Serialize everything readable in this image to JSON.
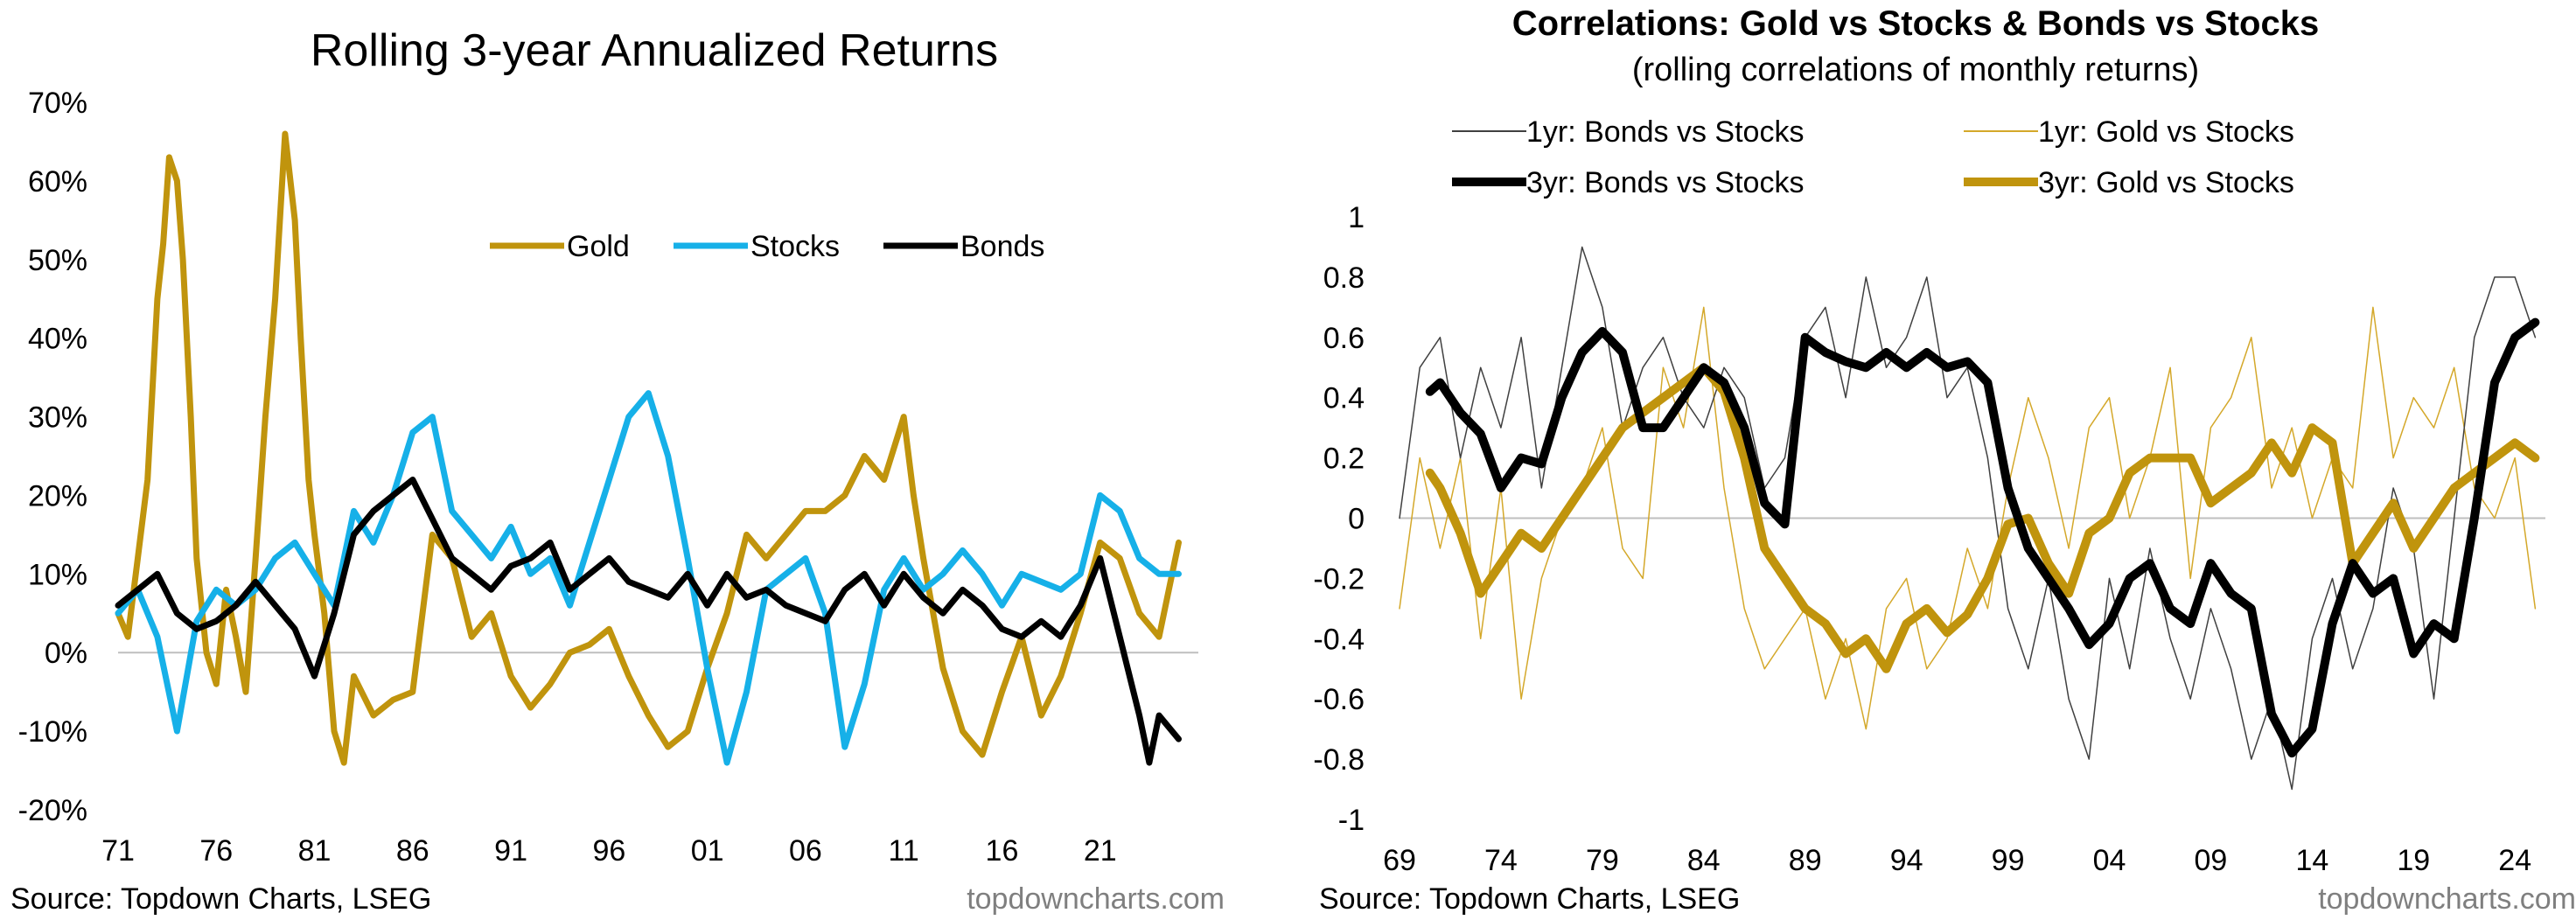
{
  "left_chart": {
    "source": "Source: Topdown Charts, LSEG",
    "brand": "topdowncharts.com"
  },
  "right_chart": {
    "source": "Source: Topdown Charts, LSEG",
    "brand": "topdowncharts.com"
  },
  "colors": {
    "gold": "#C0940D",
    "stocks": "#16B0E8",
    "bonds": "#000000",
    "zero_line": "#BFBFBF"
  },
  "chart_data": [
    {
      "id": "left",
      "type": "line",
      "title": "Rolling 3-year Annualized Returns",
      "xlabel": "",
      "ylabel": "",
      "x_ticks": [
        "71",
        "76",
        "81",
        "86",
        "91",
        "96",
        "01",
        "06",
        "11",
        "16",
        "21"
      ],
      "x_tick_values": [
        1971,
        1976,
        1981,
        1986,
        1991,
        1996,
        2001,
        2006,
        2011,
        2016,
        2021
      ],
      "xlim": [
        1971,
        2026
      ],
      "y_ticks": [
        "70%",
        "60%",
        "50%",
        "40%",
        "30%",
        "20%",
        "10%",
        "0%",
        "-10%",
        "-20%"
      ],
      "y_tick_values": [
        70,
        60,
        50,
        40,
        30,
        20,
        10,
        0,
        -10,
        -20
      ],
      "ylim": [
        -20,
        70
      ],
      "legend": [
        "Gold",
        "Stocks",
        "Bonds"
      ],
      "legend_position": "top-center",
      "series": [
        {
          "name": "Gold",
          "color": "#C0940D",
          "width": 7,
          "x": [
            1971,
            1971.5,
            1972,
            1972.5,
            1973,
            1973.3,
            1973.6,
            1974,
            1974.3,
            1974.7,
            1975,
            1975.5,
            1976,
            1976.5,
            1977,
            1977.5,
            1978,
            1978.5,
            1979,
            1979.5,
            1980,
            1980.3,
            1980.7,
            1981,
            1981.5,
            1982,
            1982.5,
            1983,
            1984,
            1985,
            1986,
            1987,
            1988,
            1989,
            1990,
            1991,
            1992,
            1993,
            1994,
            1995,
            1996,
            1997,
            1998,
            1999,
            2000,
            2001,
            2002,
            2003,
            2004,
            2005,
            2006,
            2007,
            2008,
            2009,
            2010,
            2011,
            2011.5,
            2012,
            2013,
            2014,
            2015,
            2016,
            2017,
            2018,
            2019,
            2020,
            2021,
            2022,
            2023,
            2024,
            2025
          ],
          "values": [
            5,
            2,
            12,
            22,
            45,
            52,
            63,
            60,
            50,
            30,
            12,
            0,
            -4,
            8,
            2,
            -5,
            12,
            30,
            45,
            66,
            55,
            40,
            22,
            15,
            5,
            -10,
            -14,
            -3,
            -8,
            -6,
            -5,
            15,
            12,
            2,
            5,
            -3,
            -7,
            -4,
            0,
            1,
            3,
            -3,
            -8,
            -12,
            -10,
            -2,
            5,
            15,
            12,
            15,
            18,
            18,
            20,
            25,
            22,
            30,
            20,
            12,
            -2,
            -10,
            -13,
            -5,
            2,
            -8,
            -3,
            5,
            14,
            12,
            5,
            2,
            14
          ]
        },
        {
          "name": "Stocks",
          "color": "#16B0E8",
          "width": 7,
          "x": [
            1971,
            1972,
            1973,
            1974,
            1975,
            1976,
            1977,
            1978,
            1979,
            1980,
            1981,
            1982,
            1983,
            1984,
            1985,
            1986,
            1987,
            1988,
            1989,
            1990,
            1991,
            1992,
            1993,
            1994,
            1995,
            1996,
            1997,
            1998,
            1999,
            2000,
            2001,
            2002,
            2003,
            2004,
            2005,
            2006,
            2007,
            2008,
            2009,
            2010,
            2011,
            2012,
            2013,
            2014,
            2015,
            2016,
            2017,
            2018,
            2019,
            2020,
            2021,
            2022,
            2023,
            2024,
            2025
          ],
          "values": [
            5,
            8,
            2,
            -10,
            4,
            8,
            6,
            8,
            12,
            14,
            10,
            6,
            18,
            14,
            20,
            28,
            30,
            18,
            15,
            12,
            16,
            10,
            12,
            6,
            14,
            22,
            30,
            33,
            25,
            12,
            -2,
            -14,
            -5,
            8,
            10,
            12,
            5,
            -12,
            -4,
            8,
            12,
            8,
            10,
            13,
            10,
            6,
            10,
            9,
            8,
            10,
            20,
            18,
            12,
            10,
            10
          ]
        },
        {
          "name": "Bonds",
          "color": "#000000",
          "width": 7,
          "x": [
            1971,
            1972,
            1973,
            1974,
            1975,
            1976,
            1977,
            1978,
            1979,
            1980,
            1981,
            1982,
            1983,
            1984,
            1985,
            1986,
            1987,
            1988,
            1989,
            1990,
            1991,
            1992,
            1993,
            1994,
            1995,
            1996,
            1997,
            1998,
            1999,
            2000,
            2001,
            2002,
            2003,
            2004,
            2005,
            2006,
            2007,
            2008,
            2009,
            2010,
            2011,
            2012,
            2013,
            2014,
            2015,
            2016,
            2017,
            2018,
            2019,
            2020,
            2021,
            2022,
            2023,
            2023.5,
            2024,
            2025
          ],
          "values": [
            6,
            8,
            10,
            5,
            3,
            4,
            6,
            9,
            6,
            3,
            -3,
            5,
            15,
            18,
            20,
            22,
            17,
            12,
            10,
            8,
            11,
            12,
            14,
            8,
            10,
            12,
            9,
            8,
            7,
            10,
            6,
            10,
            7,
            8,
            6,
            5,
            4,
            8,
            10,
            6,
            10,
            7,
            5,
            8,
            6,
            3,
            2,
            4,
            2,
            6,
            12,
            2,
            -8,
            -14,
            -8,
            -11
          ]
        }
      ]
    },
    {
      "id": "right",
      "type": "line",
      "title": "Correlations: Gold vs Stocks & Bonds vs Stocks",
      "subtitle": "(rolling correlations of monthly returns)",
      "xlabel": "",
      "ylabel": "",
      "x_ticks": [
        "69",
        "74",
        "79",
        "84",
        "89",
        "94",
        "99",
        "04",
        "09",
        "14",
        "19",
        "24"
      ],
      "x_tick_values": [
        1969,
        1974,
        1979,
        1984,
        1989,
        1994,
        1999,
        2004,
        2009,
        2014,
        2019,
        2024
      ],
      "xlim": [
        1969,
        2025.5
      ],
      "y_ticks": [
        "1",
        "0.8",
        "0.6",
        "0.4",
        "0.2",
        "0",
        "-0.2",
        "-0.4",
        "-0.6",
        "-0.8",
        "-1"
      ],
      "y_tick_values": [
        1,
        0.8,
        0.6,
        0.4,
        0.2,
        0,
        -0.2,
        -0.4,
        -0.6,
        -0.8,
        -1
      ],
      "ylim": [
        -1,
        1
      ],
      "legend": [
        "1yr: Bonds vs Stocks",
        "1yr: Gold vs Stocks",
        "3yr: Bonds vs Stocks",
        "3yr: Gold vs Stocks"
      ],
      "legend_position": "top",
      "series": [
        {
          "name": "1yr: Bonds vs Stocks",
          "color": "#404040",
          "width": 1.5,
          "x": [
            1969,
            1970,
            1971,
            1972,
            1973,
            1974,
            1975,
            1976,
            1977,
            1978,
            1979,
            1980,
            1981,
            1982,
            1983,
            1984,
            1985,
            1986,
            1987,
            1988,
            1989,
            1990,
            1991,
            1992,
            1993,
            1994,
            1995,
            1996,
            1997,
            1998,
            1999,
            2000,
            2001,
            2002,
            2003,
            2004,
            2005,
            2006,
            2007,
            2008,
            2009,
            2010,
            2011,
            2012,
            2013,
            2014,
            2015,
            2016,
            2017,
            2018,
            2019,
            2020,
            2021,
            2022,
            2023,
            2024,
            2025
          ],
          "values": [
            0.0,
            0.5,
            0.6,
            0.2,
            0.5,
            0.3,
            0.6,
            0.1,
            0.5,
            0.9,
            0.7,
            0.3,
            0.5,
            0.6,
            0.4,
            0.3,
            0.5,
            0.4,
            0.1,
            0.2,
            0.6,
            0.7,
            0.4,
            0.8,
            0.5,
            0.6,
            0.8,
            0.4,
            0.5,
            0.2,
            -0.3,
            -0.5,
            -0.2,
            -0.6,
            -0.8,
            -0.2,
            -0.5,
            -0.1,
            -0.4,
            -0.6,
            -0.3,
            -0.5,
            -0.8,
            -0.6,
            -0.9,
            -0.4,
            -0.2,
            -0.5,
            -0.3,
            0.1,
            -0.1,
            -0.6,
            0.0,
            0.6,
            0.8,
            0.8,
            0.6
          ]
        },
        {
          "name": "1yr: Gold vs Stocks",
          "color": "#D4A82A",
          "width": 1.5,
          "x": [
            1969,
            1970,
            1971,
            1972,
            1973,
            1974,
            1975,
            1976,
            1977,
            1978,
            1979,
            1980,
            1981,
            1982,
            1983,
            1984,
            1985,
            1986,
            1987,
            1988,
            1989,
            1990,
            1991,
            1992,
            1993,
            1994,
            1995,
            1996,
            1997,
            1998,
            1999,
            2000,
            2001,
            2002,
            2003,
            2004,
            2005,
            2006,
            2007,
            2008,
            2009,
            2010,
            2011,
            2012,
            2013,
            2014,
            2015,
            2016,
            2017,
            2018,
            2019,
            2020,
            2021,
            2022,
            2023,
            2024,
            2025
          ],
          "values": [
            -0.3,
            0.2,
            -0.1,
            0.2,
            -0.4,
            0.1,
            -0.6,
            -0.2,
            0.0,
            0.1,
            0.3,
            -0.1,
            -0.2,
            0.5,
            0.3,
            0.7,
            0.1,
            -0.3,
            -0.5,
            -0.4,
            -0.3,
            -0.6,
            -0.4,
            -0.7,
            -0.3,
            -0.2,
            -0.5,
            -0.4,
            -0.1,
            -0.3,
            0.1,
            0.4,
            0.2,
            -0.1,
            0.3,
            0.4,
            0.0,
            0.2,
            0.5,
            -0.2,
            0.3,
            0.4,
            0.6,
            0.1,
            0.3,
            0.0,
            0.2,
            0.1,
            0.7,
            0.2,
            0.4,
            0.3,
            0.5,
            0.1,
            0.0,
            0.2,
            -0.3
          ]
        },
        {
          "name": "3yr: Bonds vs Stocks",
          "color": "#000000",
          "width": 10,
          "x": [
            1970.5,
            1971,
            1972,
            1973,
            1974,
            1975,
            1976,
            1977,
            1978,
            1979,
            1980,
            1981,
            1982,
            1983,
            1984,
            1985,
            1986,
            1987,
            1988,
            1989,
            1990,
            1991,
            1992,
            1993,
            1994,
            1995,
            1996,
            1997,
            1998,
            1999,
            2000,
            2001,
            2002,
            2003,
            2004,
            2005,
            2006,
            2007,
            2008,
            2009,
            2010,
            2011,
            2012,
            2013,
            2014,
            2015,
            2016,
            2017,
            2018,
            2019,
            2020,
            2021,
            2022,
            2023,
            2024,
            2025
          ],
          "values": [
            0.42,
            0.45,
            0.35,
            0.28,
            0.1,
            0.2,
            0.18,
            0.4,
            0.55,
            0.62,
            0.55,
            0.3,
            0.3,
            0.4,
            0.5,
            0.45,
            0.3,
            0.05,
            -0.02,
            0.6,
            0.55,
            0.52,
            0.5,
            0.55,
            0.5,
            0.55,
            0.5,
            0.52,
            0.45,
            0.1,
            -0.1,
            -0.2,
            -0.3,
            -0.42,
            -0.35,
            -0.2,
            -0.15,
            -0.3,
            -0.35,
            -0.15,
            -0.25,
            -0.3,
            -0.65,
            -0.78,
            -0.7,
            -0.35,
            -0.15,
            -0.25,
            -0.2,
            -0.45,
            -0.35,
            -0.4,
            0.0,
            0.45,
            0.6,
            0.65
          ]
        },
        {
          "name": "3yr: Gold vs Stocks",
          "color": "#C0940D",
          "width": 10,
          "x": [
            1970.5,
            1971,
            1972,
            1973,
            1974,
            1975,
            1976,
            1977,
            1978,
            1979,
            1980,
            1981,
            1982,
            1983,
            1984,
            1985,
            1986,
            1987,
            1988,
            1989,
            1990,
            1991,
            1992,
            1993,
            1994,
            1995,
            1996,
            1997,
            1998,
            1999,
            2000,
            2001,
            2002,
            2003,
            2004,
            2005,
            2006,
            2007,
            2008,
            2009,
            2010,
            2011,
            2012,
            2013,
            2014,
            2015,
            2016,
            2017,
            2018,
            2019,
            2020,
            2021,
            2022,
            2023,
            2024,
            2025
          ],
          "values": [
            0.15,
            0.1,
            -0.05,
            -0.25,
            -0.15,
            -0.05,
            -0.1,
            0.0,
            0.1,
            0.2,
            0.3,
            0.35,
            0.4,
            0.45,
            0.5,
            0.42,
            0.2,
            -0.1,
            -0.2,
            -0.3,
            -0.35,
            -0.45,
            -0.4,
            -0.5,
            -0.35,
            -0.3,
            -0.38,
            -0.32,
            -0.2,
            -0.02,
            0.0,
            -0.15,
            -0.25,
            -0.05,
            0.0,
            0.15,
            0.2,
            0.2,
            0.2,
            0.05,
            0.1,
            0.15,
            0.25,
            0.15,
            0.3,
            0.25,
            -0.15,
            -0.05,
            0.05,
            -0.1,
            0.0,
            0.1,
            0.15,
            0.2,
            0.25,
            0.2
          ]
        }
      ]
    }
  ]
}
